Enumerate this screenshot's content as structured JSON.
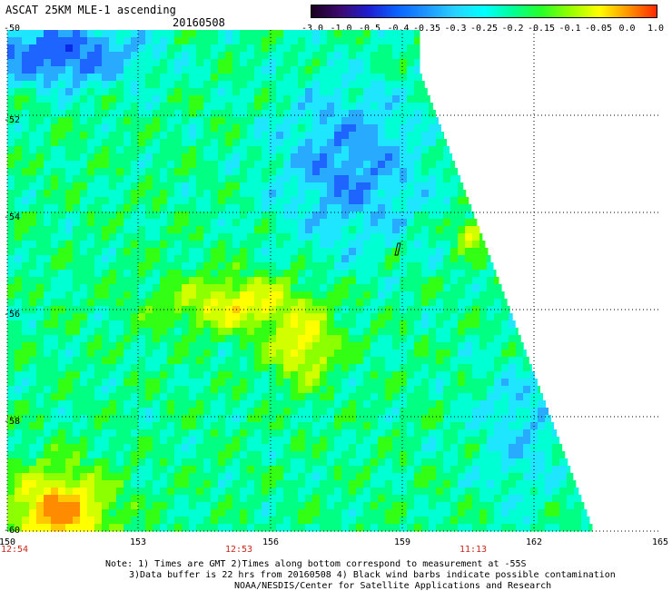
{
  "header": {
    "title": "ASCAT 25KM MLE-1 ascending",
    "date": "20160508"
  },
  "colorbar": {
    "labels": [
      "-3.0",
      "-1.0",
      "-0.5",
      "-0.4",
      "-0.35",
      "-0.3",
      "-0.25",
      "-0.2",
      "-0.15",
      "-0.1",
      "-0.05",
      "0.0",
      "1.0"
    ],
    "colors": [
      "#1a0020",
      "#3c0a6e",
      "#1e1ed2",
      "#0a64ff",
      "#1e96ff",
      "#28d2ff",
      "#00ffff",
      "#00ff96",
      "#28ff28",
      "#96ff00",
      "#ffff00",
      "#ff9600",
      "#ff2800"
    ]
  },
  "map": {
    "lat_labels": [
      "-50",
      "-52",
      "-54",
      "-56",
      "-58",
      "-60"
    ],
    "lon_labels": [
      "150",
      "153",
      "156",
      "159",
      "162",
      "165"
    ],
    "time_labels": [
      "12:54",
      "12:53",
      "11:13"
    ],
    "mle_scale": "MLE-1 ascending"
  },
  "notes": {
    "line1": "Note: 1) Times are GMT 2)Times along bottom correspond to measurement at -55S",
    "line2": "3)Data buffer is 22 hrs from 20160508 4) Black wind barbs indicate possible contamination",
    "line3": "NOAA/NESDIS/Center for Satellite Applications and Research"
  }
}
